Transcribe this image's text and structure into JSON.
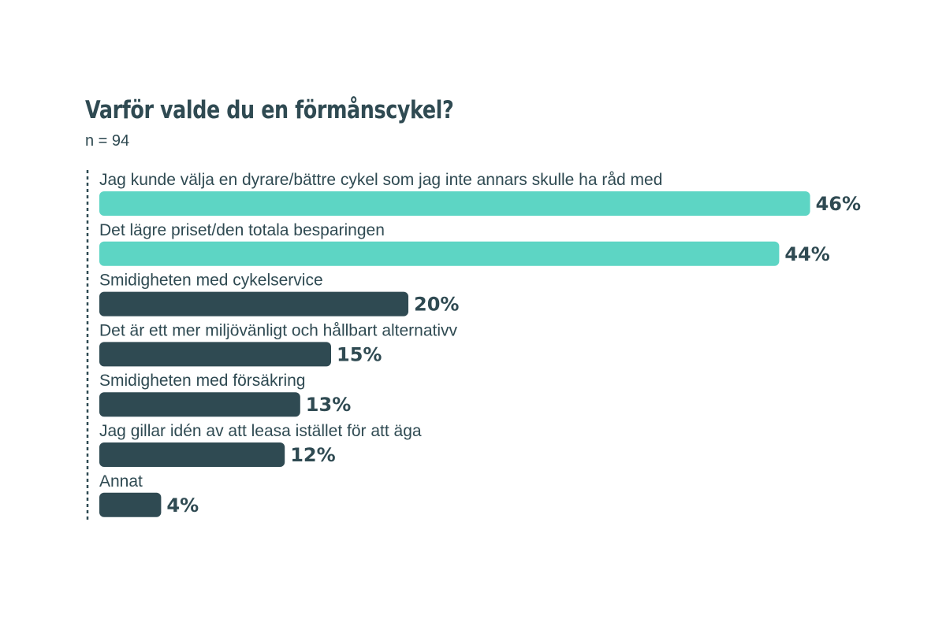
{
  "chart_data": {
    "type": "bar",
    "orientation": "horizontal",
    "title": "Varför valde du en förmånscykel?",
    "subtitle": "n = 94",
    "categories": [
      "Jag kunde välja en dyrare/bättre cykel som jag inte annars skulle ha råd med",
      "Det lägre priset/den totala besparingen",
      "Smidigheten med cykelservice",
      "Det är ett mer miljövänligt och hållbart alternativv",
      "Smidigheten med försäkring",
      "Jag gillar idén av att leasa istället för att äga",
      "Annat"
    ],
    "values": [
      46,
      44,
      20,
      15,
      13,
      12,
      4
    ],
    "value_labels": [
      "46%",
      "44%",
      "20%",
      "15%",
      "13%",
      "12%",
      "4%"
    ],
    "unit": "%",
    "highlight_count": 2,
    "colors": {
      "highlight": "#5dd5c4",
      "default": "#2f4a52",
      "text": "#2f4a52",
      "axis": "#2f4a52"
    },
    "grid": false,
    "legend": "none"
  }
}
